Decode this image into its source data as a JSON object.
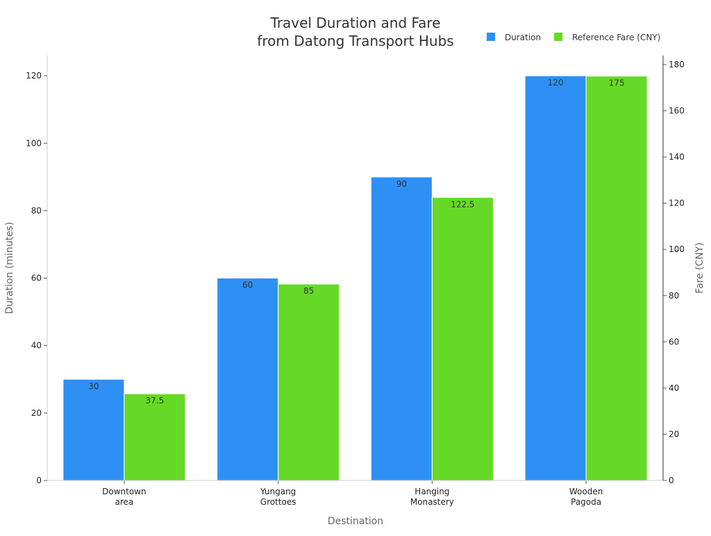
{
  "chart_data": {
    "type": "bar",
    "title": "Travel Duration and Fare\nfrom Datong Transport Hubs",
    "title_lines": [
      "Travel Duration and Fare",
      "from Datong Transport Hubs"
    ],
    "xlabel": "Destination",
    "ylabel": "Duration (minutes)",
    "y2label": "Fare (CNY)",
    "categories": [
      [
        "Downtown",
        "area"
      ],
      [
        "Yungang",
        "Grottoes"
      ],
      [
        "Hanging",
        "Monastery"
      ],
      [
        "Wooden",
        "Pagoda"
      ]
    ],
    "series": [
      {
        "name": "Duration",
        "axis": "left",
        "color": "#2e90f5",
        "values": [
          30,
          60,
          90,
          120
        ],
        "labels": [
          "30",
          "60",
          "90",
          "120"
        ]
      },
      {
        "name": "Reference Fare (CNY)",
        "axis": "right",
        "color": "#66d926",
        "values": [
          37.5,
          85,
          122.5,
          175
        ],
        "labels": [
          "37.5",
          "85",
          "122.5",
          "175"
        ]
      }
    ],
    "ylim": [
      0,
      126
    ],
    "y2lim": [
      0,
      183.9
    ],
    "yticks": [
      "0",
      "20",
      "40",
      "60",
      "80",
      "100",
      "120"
    ],
    "y2ticks": [
      "0",
      "20",
      "40",
      "60",
      "80",
      "100",
      "120",
      "140",
      "160",
      "180"
    ],
    "legend_position": "top-right",
    "grid": false
  }
}
